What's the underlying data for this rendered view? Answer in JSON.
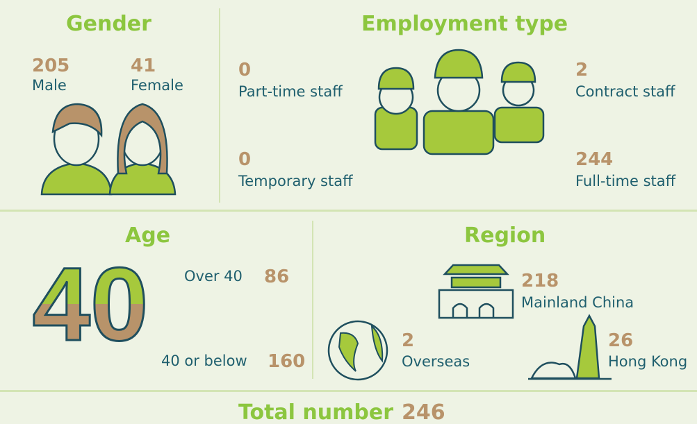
{
  "gender": {
    "title": "Gender",
    "items": [
      {
        "value": 205,
        "label": "Male"
      },
      {
        "value": 41,
        "label": "Female"
      }
    ]
  },
  "employment": {
    "title": "Employment type",
    "items": [
      {
        "value": 0,
        "label": "Part-time staff"
      },
      {
        "value": 0,
        "label": "Temporary staff"
      },
      {
        "value": 2,
        "label": "Contract staff"
      },
      {
        "value": 244,
        "label": "Full-time staff"
      }
    ]
  },
  "age": {
    "title": "Age",
    "graphic": "40",
    "items": [
      {
        "label": "Over 40",
        "value": 86
      },
      {
        "label": "40 or below",
        "value": 160
      }
    ]
  },
  "region": {
    "title": "Region",
    "items": [
      {
        "value": 218,
        "label": "Mainland China"
      },
      {
        "value": 2,
        "label": "Overseas"
      },
      {
        "value": 26,
        "label": "Hong Kong"
      }
    ]
  },
  "total": {
    "label": "Total number",
    "value": 246
  }
}
